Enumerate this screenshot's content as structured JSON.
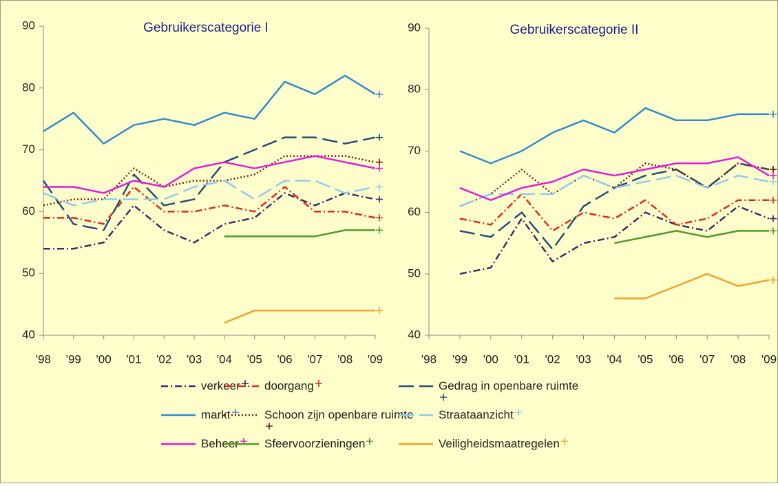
{
  "chart_data": [
    {
      "type": "line",
      "title": "Gebruikerscategorie I",
      "categories": [
        "'98",
        "'99",
        "'00",
        "'01",
        "'02",
        "'03",
        "'04",
        "'05",
        "'06",
        "'07",
        "'08",
        "'09"
      ],
      "ylim": [
        40,
        90
      ],
      "yticks": [
        40,
        50,
        60,
        70,
        80,
        90
      ],
      "series": [
        {
          "name": "verkeer",
          "color": "#3b2a6e",
          "dash": "dashdot",
          "values": [
            54,
            54,
            55,
            61,
            57,
            55,
            58,
            59,
            63,
            61,
            63,
            62
          ]
        },
        {
          "name": "doorgang",
          "color": "#e8241b",
          "dash": "dashdot",
          "values": [
            59,
            59,
            58,
            64,
            60,
            60,
            61,
            60,
            64,
            60,
            60,
            59
          ]
        },
        {
          "name": "Gedrag in openbare ruimte",
          "color": "#1f4e79",
          "dash": "longdash",
          "values": [
            65,
            58,
            57,
            66,
            61,
            62,
            68,
            70,
            72,
            72,
            71,
            72
          ]
        },
        {
          "name": "markt",
          "color": "#2e8bcc",
          "dash": "solid",
          "values": [
            73,
            76,
            71,
            74,
            75,
            74,
            76,
            75,
            81,
            79,
            82,
            79
          ]
        },
        {
          "name": "Schoon zijn openbare ruimte",
          "color": "#7b1a1a",
          "dash": "dotted",
          "values": [
            61,
            62,
            62,
            67,
            64,
            65,
            65,
            66,
            69,
            69,
            69,
            68
          ]
        },
        {
          "name": "Straataanzicht",
          "color": "#8ecbef",
          "dash": "longdash",
          "values": [
            63,
            61,
            62,
            62,
            62,
            64,
            65,
            62,
            65,
            65,
            63,
            64
          ]
        },
        {
          "name": "Beheer",
          "color": "#e619d9",
          "dash": "solid",
          "values": [
            64,
            64,
            63,
            65,
            64,
            67,
            68,
            67,
            68,
            69,
            68,
            67
          ]
        },
        {
          "name": "Sfeervoorzieningen",
          "color": "#4e9a2a",
          "dash": "solid",
          "values": [
            null,
            null,
            null,
            null,
            null,
            null,
            56,
            56,
            56,
            56,
            57,
            57
          ]
        },
        {
          "name": "Veiligheidsmaatregelen",
          "color": "#f5a02a",
          "dash": "solid",
          "values": [
            null,
            null,
            null,
            null,
            null,
            null,
            42,
            44,
            44,
            44,
            44,
            44
          ]
        }
      ]
    },
    {
      "type": "line",
      "title": "Gebruikerscategorie II",
      "categories": [
        "'98",
        "'99",
        "'00",
        "'01",
        "'02",
        "'03",
        "'04",
        "'05",
        "'06",
        "'07",
        "'08",
        "'09"
      ],
      "ylim": [
        40,
        90
      ],
      "yticks": [
        40,
        50,
        60,
        70,
        80,
        90
      ],
      "series": [
        {
          "name": "verkeer",
          "color": "#3b2a6e",
          "dash": "dashdot",
          "values": [
            null,
            50,
            51,
            59,
            52,
            55,
            56,
            60,
            58,
            57,
            61,
            59
          ]
        },
        {
          "name": "doorgang",
          "color": "#e8241b",
          "dash": "dashdot",
          "values": [
            null,
            59,
            58,
            63,
            57,
            60,
            59,
            62,
            58,
            59,
            62,
            62
          ]
        },
        {
          "name": "Gedrag in openbare ruimte",
          "color": "#1f4e79",
          "dash": "longdash",
          "values": [
            null,
            57,
            56,
            60,
            54,
            61,
            64,
            66,
            67,
            64,
            68,
            67
          ]
        },
        {
          "name": "markt",
          "color": "#2e8bcc",
          "dash": "solid",
          "values": [
            null,
            70,
            68,
            70,
            73,
            75,
            73,
            77,
            75,
            75,
            76,
            76
          ]
        },
        {
          "name": "Schoon zijn openbare ruimte",
          "color": "#7b1a1a",
          "dash": "dotted",
          "values": [
            null,
            61,
            63,
            67,
            63,
            66,
            64,
            68,
            67,
            64,
            68,
            67
          ]
        },
        {
          "name": "Straataanzicht",
          "color": "#8ecbef",
          "dash": "longdash",
          "values": [
            null,
            61,
            63,
            63,
            63,
            66,
            64,
            65,
            66,
            64,
            66,
            65
          ]
        },
        {
          "name": "Beheer",
          "color": "#e619d9",
          "dash": "solid",
          "values": [
            null,
            64,
            62,
            64,
            65,
            67,
            66,
            67,
            68,
            68,
            69,
            66
          ]
        },
        {
          "name": "Sfeervoorzieningen",
          "color": "#4e9a2a",
          "dash": "solid",
          "values": [
            null,
            null,
            null,
            null,
            null,
            null,
            55,
            56,
            57,
            56,
            57,
            57
          ]
        },
        {
          "name": "Veiligheidsmaatregelen",
          "color": "#f5a02a",
          "dash": "solid",
          "values": [
            null,
            null,
            null,
            null,
            null,
            null,
            46,
            46,
            48,
            50,
            48,
            49
          ]
        }
      ]
    }
  ]
}
